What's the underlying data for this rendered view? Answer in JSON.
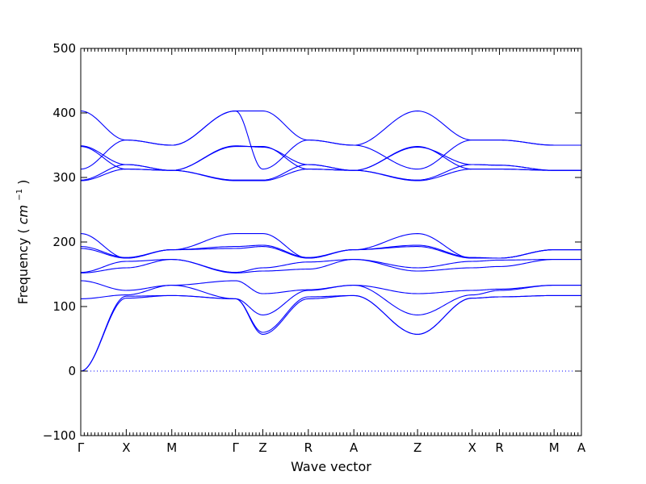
{
  "chart_data": {
    "type": "line",
    "xlabel": "Wave vector",
    "ylabel": "Frequency",
    "ylabel_unit_base": "cm",
    "ylabel_unit_exp": "−1",
    "ylim": [
      -100,
      500
    ],
    "yticks": [
      -100,
      0,
      100,
      200,
      300,
      400,
      500
    ],
    "high_symmetry_points": [
      {
        "label": "Γ",
        "pos": 0
      },
      {
        "label": "X",
        "pos": 1
      },
      {
        "label": "M",
        "pos": 2
      },
      {
        "label": "Γ",
        "pos": 3.4
      },
      {
        "label": "Z",
        "pos": 4
      },
      {
        "label": "R",
        "pos": 5
      },
      {
        "label": "A",
        "pos": 6
      },
      {
        "label": "Z",
        "pos": 7.4
      },
      {
        "label": "X",
        "pos": 8.6
      },
      {
        "label": "R",
        "pos": 9.2
      },
      {
        "label": "M",
        "pos": 10.4
      },
      {
        "label": "A",
        "pos": 11
      }
    ],
    "zero_line": true,
    "bands": [
      [
        0,
        113,
        117,
        112,
        60,
        115,
        117,
        57,
        113,
        115,
        117,
        117
      ],
      [
        0,
        116,
        117,
        112,
        57,
        112,
        117,
        57,
        113,
        115,
        117,
        117
      ],
      [
        112,
        118,
        133,
        112,
        87,
        125,
        133,
        87,
        118,
        125,
        133,
        133
      ],
      [
        140,
        125,
        133,
        140,
        120,
        126,
        133,
        120,
        125,
        127,
        133,
        133
      ],
      [
        152,
        160,
        173,
        152,
        155,
        158,
        173,
        155,
        160,
        162,
        173,
        173
      ],
      [
        153,
        170,
        173,
        153,
        160,
        169,
        173,
        160,
        170,
        172,
        173,
        173
      ],
      [
        190,
        175,
        188,
        190,
        193,
        175,
        188,
        193,
        175,
        175,
        188,
        188
      ],
      [
        193,
        176,
        188,
        193,
        195,
        176,
        188,
        195,
        176,
        175,
        188,
        188
      ],
      [
        213,
        175,
        188,
        213,
        213,
        175,
        188,
        213,
        175,
        175,
        188,
        188
      ],
      [
        295,
        313,
        311,
        295,
        295,
        313,
        311,
        295,
        313,
        313,
        311,
        311
      ],
      [
        296,
        320,
        311,
        296,
        296,
        320,
        311,
        296,
        320,
        319,
        311,
        311
      ],
      [
        313,
        358,
        350,
        403,
        313,
        358,
        350,
        313,
        358,
        358,
        350,
        350
      ],
      [
        348,
        313,
        311,
        348,
        348,
        313,
        311,
        348,
        313,
        313,
        311,
        311
      ],
      [
        349,
        320,
        311,
        349,
        347,
        320,
        311,
        347,
        320,
        319,
        311,
        311
      ],
      [
        403,
        358,
        350,
        403,
        403,
        358,
        350,
        403,
        358,
        358,
        350,
        350
      ]
    ]
  }
}
